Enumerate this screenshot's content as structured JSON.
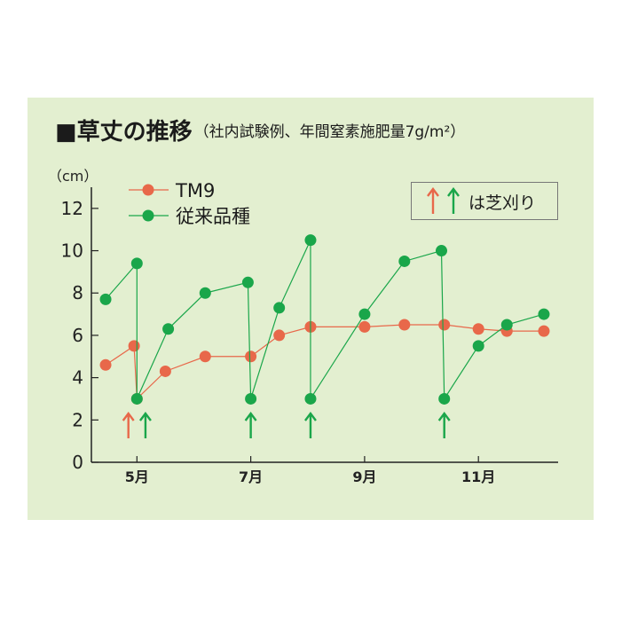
{
  "title": {
    "main": "■草丈の推移",
    "sub": "（社内試験例、年間窒素施肥量7g/m²）"
  },
  "colors": {
    "background": "#e3efd0",
    "tm9": "#e8684a",
    "conventional": "#1aa64a",
    "axis": "#222222"
  },
  "chart_data": {
    "type": "line",
    "ylabel": "（cm）",
    "ylim": [
      0,
      13
    ],
    "yticks": [
      0,
      2,
      4,
      6,
      8,
      10,
      12
    ],
    "xlim": [
      4.2,
      12.4
    ],
    "xticks": [
      {
        "x": 5,
        "label": "5月"
      },
      {
        "x": 7,
        "label": "7月"
      },
      {
        "x": 9,
        "label": "9月"
      },
      {
        "x": 11,
        "label": "11月"
      }
    ],
    "series": [
      {
        "name": "TM9",
        "color": "#e8684a",
        "points": [
          [
            4.45,
            4.6
          ],
          [
            4.95,
            5.5
          ],
          [
            5.0,
            3.0
          ],
          [
            5.5,
            4.3
          ],
          [
            6.2,
            5.0
          ],
          [
            7.0,
            5.0
          ],
          [
            7.5,
            6.0
          ],
          [
            8.05,
            6.4
          ],
          [
            9.0,
            6.4
          ],
          [
            9.7,
            6.5
          ],
          [
            10.4,
            6.5
          ],
          [
            11.0,
            6.3
          ],
          [
            11.5,
            6.2
          ],
          [
            12.15,
            6.2
          ]
        ]
      },
      {
        "name": "従来品種",
        "color": "#1aa64a",
        "points": [
          [
            4.45,
            7.7
          ],
          [
            5.0,
            9.4
          ],
          [
            5.0,
            3.0
          ],
          [
            5.55,
            6.3
          ],
          [
            6.2,
            8.0
          ],
          [
            6.95,
            8.5
          ],
          [
            7.0,
            3.0
          ],
          [
            7.5,
            7.3
          ],
          [
            8.05,
            10.5
          ],
          [
            8.05,
            3.0
          ],
          [
            9.0,
            7.0
          ],
          [
            9.7,
            9.5
          ],
          [
            10.35,
            10.0
          ],
          [
            10.4,
            3.0
          ],
          [
            11.0,
            5.5
          ],
          [
            11.5,
            6.5
          ],
          [
            12.15,
            7.0
          ]
        ]
      }
    ],
    "mowing_arrows": [
      {
        "x": 4.85,
        "series": "TM9"
      },
      {
        "x": 5.15,
        "series": "従来品種"
      },
      {
        "x": 7.0,
        "series": "従来品種"
      },
      {
        "x": 8.05,
        "series": "従来品種"
      },
      {
        "x": 10.4,
        "series": "従来品種"
      }
    ],
    "legend_note": "は芝刈り"
  }
}
